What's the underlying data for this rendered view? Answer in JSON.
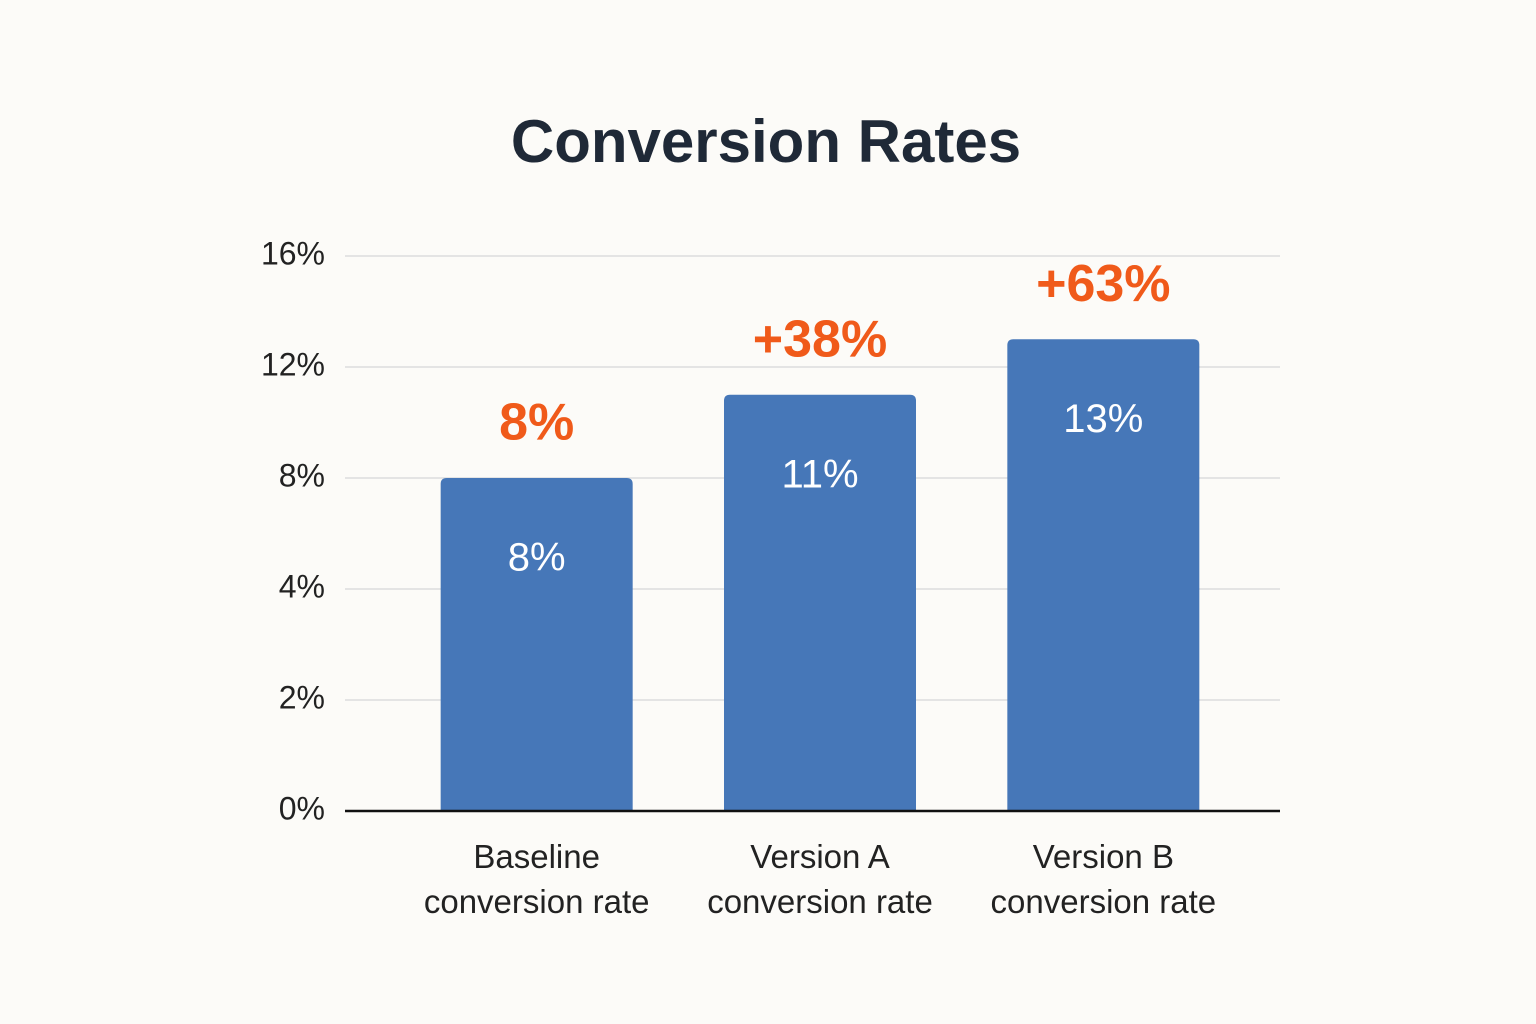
{
  "chart_data": {
    "type": "bar",
    "title": "Conversion Rates",
    "categories": [
      "Baseline conversion rate",
      "Version A conversion rate",
      "Version B conversion rate"
    ],
    "values": [
      8,
      11,
      13
    ],
    "value_labels": [
      "8%",
      "11%",
      "13%"
    ],
    "annotations": [
      "8%",
      "+38%",
      "+63%"
    ],
    "color": "#4677b8",
    "annotation_color": "#f05a1a",
    "ylim": [
      0,
      16
    ],
    "yticks": [
      {
        "value": 0,
        "label": "0%"
      },
      {
        "value": 2,
        "label": "2%"
      },
      {
        "value": 4,
        "label": "4%"
      },
      {
        "value": 8,
        "label": "8%"
      },
      {
        "value": 12,
        "label": "12%"
      },
      {
        "value": 16,
        "label": "16%"
      }
    ],
    "grid": true
  }
}
